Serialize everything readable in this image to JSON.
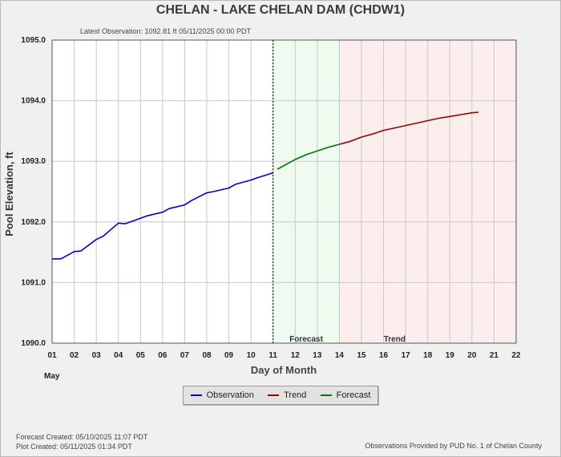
{
  "header": {
    "title": "CHELAN - LAKE CHELAN DAM  (CHDW1)",
    "latest_observation": "Latest Observation: 1092.81 ft 05/11/2025 00:00 PDT"
  },
  "footer": {
    "forecast_created": "Forecast Created: 05/10/2025 11:07 PDT",
    "plot_created": "Plot Created: 05/11/2025 01:34 PDT",
    "provider": "Observations Provided by PUD No. 1 of Chelan County"
  },
  "chart_data": {
    "type": "line",
    "xlabel": "Day of Month",
    "x_sublabel": "May",
    "ylabel": "Pool Elevation, ft",
    "xlim": [
      1,
      22
    ],
    "ylim": [
      1090.0,
      1095.0
    ],
    "x_ticks": [
      "01",
      "02",
      "03",
      "04",
      "05",
      "06",
      "07",
      "08",
      "09",
      "10",
      "11",
      "12",
      "13",
      "14",
      "15",
      "16",
      "17",
      "18",
      "19",
      "20",
      "21",
      "22"
    ],
    "y_ticks": [
      "1090.0",
      "1091.0",
      "1092.0",
      "1093.0",
      "1094.0",
      "1095.0"
    ],
    "grid": true,
    "regions": [
      {
        "label": "Forecast",
        "from": 11,
        "to": 14,
        "color": "#eefbee"
      },
      {
        "label": "Trend",
        "from": 14,
        "to": 22,
        "color": "#fdeeee"
      }
    ],
    "divider_x": 11,
    "legend_position": "bottom",
    "series": [
      {
        "name": "Observation",
        "color": "#0000cc",
        "x": [
          1,
          1.4,
          2,
          2.3,
          3,
          3.3,
          4,
          4.3,
          5,
          5.3,
          6,
          6.3,
          7,
          7.3,
          8,
          8.3,
          9,
          9.3,
          10,
          10.3,
          11
        ],
        "y": [
          1091.39,
          1091.39,
          1091.51,
          1091.52,
          1091.71,
          1091.76,
          1091.98,
          1091.97,
          1092.06,
          1092.1,
          1092.16,
          1092.22,
          1092.28,
          1092.35,
          1092.48,
          1092.5,
          1092.56,
          1092.62,
          1092.69,
          1092.73,
          1092.81
        ]
      },
      {
        "name": "Forecast",
        "color": "#007700",
        "x": [
          11.2,
          11.5,
          12,
          12.5,
          13,
          13.5,
          14
        ],
        "y": [
          1092.87,
          1092.93,
          1093.03,
          1093.11,
          1093.17,
          1093.23,
          1093.28
        ]
      },
      {
        "name": "Trend",
        "color": "#990000",
        "x": [
          14,
          14.5,
          15,
          15.5,
          16,
          16.5,
          17,
          17.5,
          18,
          18.5,
          19,
          19.5,
          20,
          20.3
        ],
        "y": [
          1093.28,
          1093.33,
          1093.4,
          1093.45,
          1093.51,
          1093.55,
          1093.59,
          1093.63,
          1093.67,
          1093.71,
          1093.74,
          1093.77,
          1093.8,
          1093.81
        ]
      }
    ]
  }
}
